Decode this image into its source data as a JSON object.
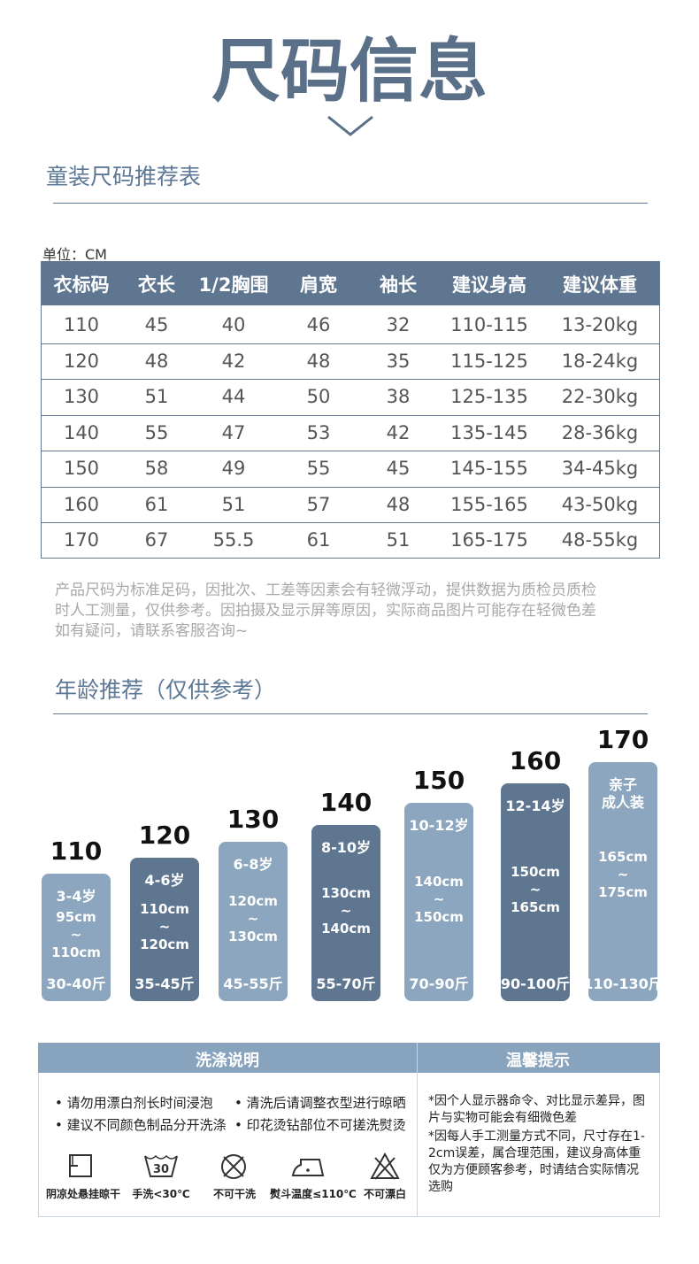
{
  "title": "尺码信息",
  "section1": {
    "heading": "童装尺码推荐表"
  },
  "table": {
    "unit": "单位：CM",
    "header": [
      "衣标码",
      "衣长",
      "1/2胸围",
      "肩宽",
      "袖长",
      "建议身高",
      "建议体重"
    ],
    "rows": [
      [
        "110",
        "45",
        "40",
        "46",
        "32",
        "110-115",
        "13-20kg"
      ],
      [
        "120",
        "48",
        "42",
        "48",
        "35",
        "115-125",
        "18-24kg"
      ],
      [
        "130",
        "51",
        "44",
        "50",
        "38",
        "125-135",
        "22-30kg"
      ],
      [
        "140",
        "55",
        "47",
        "53",
        "42",
        "135-145",
        "28-36kg"
      ],
      [
        "150",
        "58",
        "49",
        "55",
        "45",
        "145-155",
        "34-45kg"
      ],
      [
        "160",
        "61",
        "51",
        "57",
        "48",
        "155-165",
        "43-50kg"
      ],
      [
        "170",
        "67",
        "55.5",
        "61",
        "51",
        "165-175",
        "48-55kg"
      ]
    ]
  },
  "note": [
    "产品尺码为标准足码，因批次、工差等因素会有轻微浮动，提供数据为质检员质检",
    "时人工测量，仅供参考。因拍摄及显示屏等原因，实际商品图片可能存在轻微色差",
    "如有疑问，请联系客服咨询~"
  ],
  "section2": {
    "heading": "年龄推荐（仅供参考）"
  },
  "ages": [
    {
      "size": "110",
      "age_lines": [
        "3-4岁"
      ],
      "height_lines": [
        "95cm",
        "~",
        "110cm"
      ],
      "weight": "30-40斤",
      "color": "#8ba6be"
    },
    {
      "size": "120",
      "age_lines": [
        "4-6岁"
      ],
      "height_lines": [
        "110cm",
        "~",
        "120cm"
      ],
      "weight": "35-45斤",
      "color": "#5e7690"
    },
    {
      "size": "130",
      "age_lines": [
        "6-8岁"
      ],
      "height_lines": [
        "120cm",
        "~",
        "130cm"
      ],
      "weight": "45-55斤",
      "color": "#8ba6be"
    },
    {
      "size": "140",
      "age_lines": [
        "8-10岁"
      ],
      "height_lines": [
        "130cm",
        "~",
        "140cm"
      ],
      "weight": "55-70斤",
      "color": "#5e7690"
    },
    {
      "size": "150",
      "age_lines": [
        "10-12岁"
      ],
      "height_lines": [
        "140cm",
        "~",
        "150cm"
      ],
      "weight": "70-90斤",
      "color": "#8ba6be"
    },
    {
      "size": "160",
      "age_lines": [
        "12-14岁"
      ],
      "height_lines": [
        "150cm",
        "~",
        "165cm"
      ],
      "weight": "90-100斤",
      "color": "#5e7690"
    },
    {
      "size": "170",
      "age_lines": [
        "亲子",
        "成人装"
      ],
      "height_lines": [
        "165cm",
        "~",
        "175cm"
      ],
      "weight": "110-130斤",
      "color": "#8ba6be"
    }
  ],
  "care": {
    "heading": "洗涤说明",
    "tips": [
      [
        "• 请勿用漂白剂长时间浸泡",
        "• 清洗后请调整衣型进行晾晒"
      ],
      [
        "• 建议不同颜色制品分开洗涤",
        "• 印花烫钻部位不可搓洗熨烫"
      ]
    ],
    "icons": [
      "阴凉处悬挂晾干",
      "手洗<30℃",
      "不可干洗",
      "熨斗温度≤110℃",
      "不可漂白"
    ],
    "wash_temp": "30"
  },
  "warm": {
    "heading": "温馨提示",
    "items": [
      "*因个人显示器命令、对比显示差异，图片与实物可能会有细微色差",
      "*因每人手工测量方式不同，尺寸存在1-2cm误差，属合理范围，建议身高体重仅为方便顾客参考，时请结合实际情况选购"
    ]
  }
}
